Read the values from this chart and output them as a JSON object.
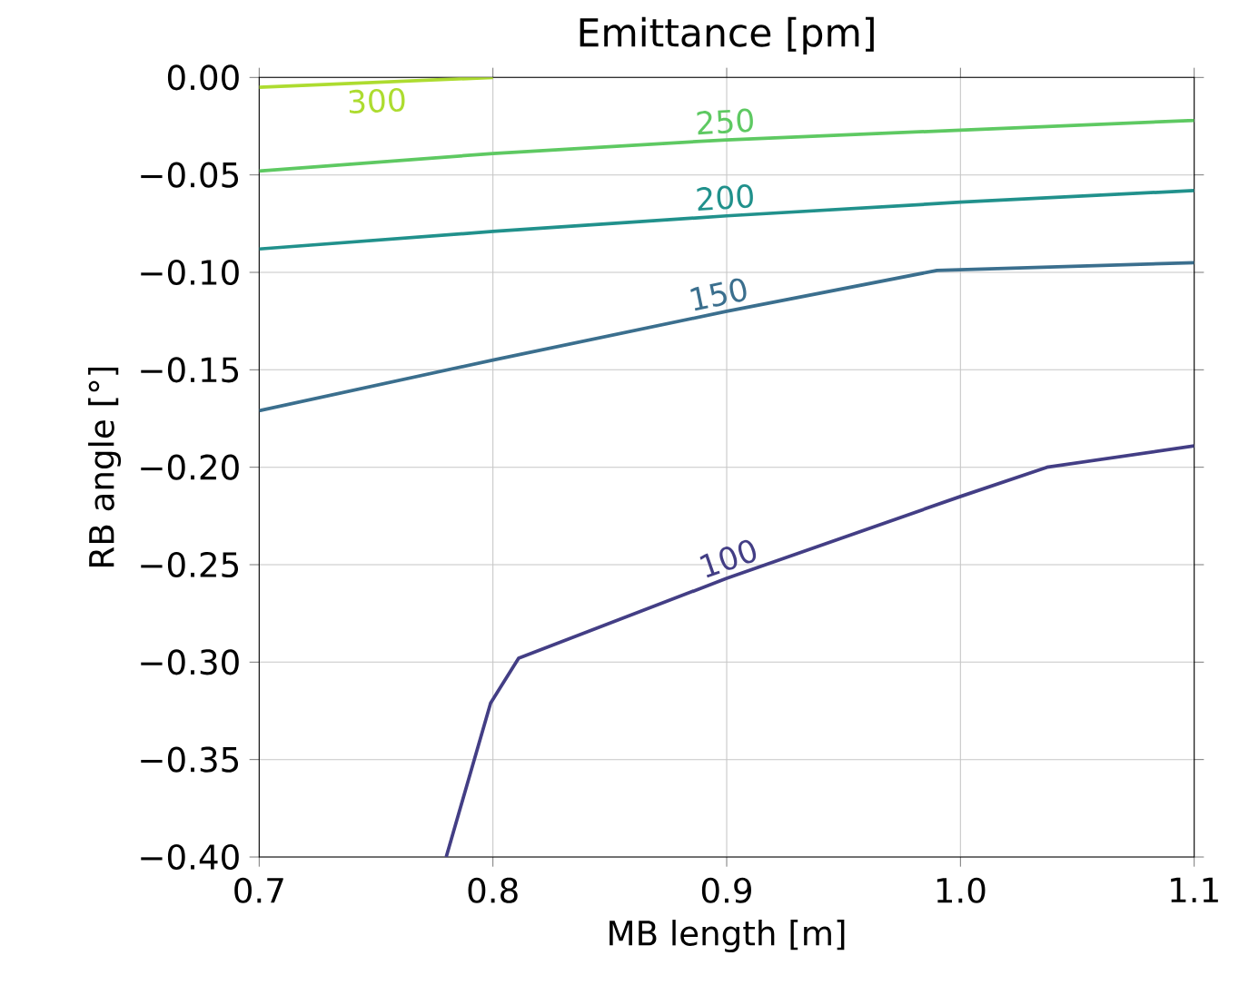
{
  "chart_data": {
    "type": "line",
    "title": "Emittance [pm]",
    "xlabel": "MB length [m]",
    "ylabel": "RB angle [°]",
    "xlim": [
      0.7,
      1.1
    ],
    "ylim": [
      -0.4,
      0.0
    ],
    "xticks": [
      {
        "value": 0.7,
        "label": "0.7"
      },
      {
        "value": 0.8,
        "label": "0.8"
      },
      {
        "value": 0.9,
        "label": "0.9"
      },
      {
        "value": 1.0,
        "label": "1.0"
      },
      {
        "value": 1.1,
        "label": "1.1"
      }
    ],
    "yticks": [
      {
        "value": 0,
        "label": "0.00"
      },
      {
        "value": -0.05,
        "label": "−0.05"
      },
      {
        "value": -0.1,
        "label": "−0.10"
      },
      {
        "value": -0.15,
        "label": "−0.15"
      },
      {
        "value": -0.2,
        "label": "−0.20"
      },
      {
        "value": -0.25,
        "label": "−0.25"
      },
      {
        "value": -0.3,
        "label": "−0.30"
      },
      {
        "value": -0.35,
        "label": "−0.35"
      },
      {
        "value": -0.4,
        "label": "−0.40"
      }
    ],
    "grid": true,
    "marker": "none",
    "line_style": "solid",
    "series": [
      {
        "name": "100",
        "color": "#433e85",
        "x": [
          0.78,
          0.799,
          0.811,
          0.9,
          1.0,
          1.037,
          1.1
        ],
        "values": [
          -0.4,
          -0.321,
          -0.298,
          -0.257,
          -0.215,
          -0.2,
          -0.189
        ]
      },
      {
        "name": "150",
        "color": "#3b6f8e",
        "x": [
          0.7,
          0.8,
          0.9,
          0.99,
          1.1
        ],
        "values": [
          -0.171,
          -0.145,
          -0.12,
          -0.099,
          -0.095
        ]
      },
      {
        "name": "200",
        "color": "#21918c",
        "x": [
          0.7,
          0.8,
          0.9,
          1.0,
          1.1
        ],
        "values": [
          -0.088,
          -0.079,
          -0.071,
          -0.064,
          -0.058
        ]
      },
      {
        "name": "250",
        "color": "#5ec962",
        "x": [
          0.7,
          0.8,
          0.9,
          1.0,
          1.1
        ],
        "values": [
          -0.048,
          -0.039,
          -0.032,
          -0.027,
          -0.022
        ]
      },
      {
        "name": "300",
        "color": "#addc30",
        "x": [
          0.7,
          0.8
        ],
        "values": [
          -0.005,
          0.0
        ]
      }
    ]
  }
}
